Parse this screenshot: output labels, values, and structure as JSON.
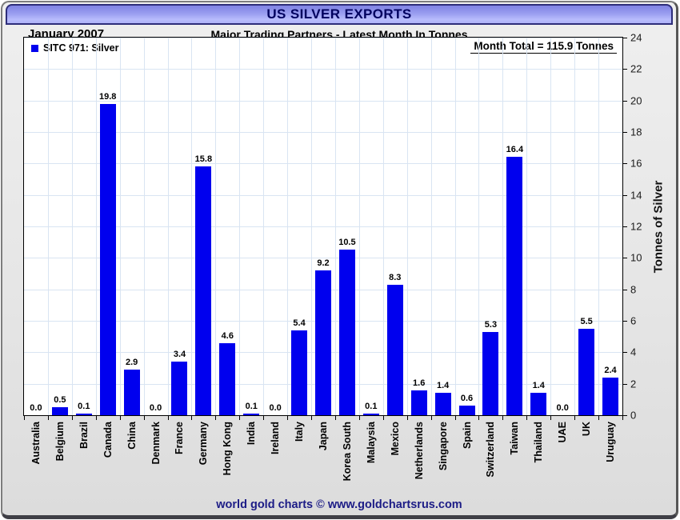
{
  "header": {
    "title": "US SILVER EXPORTS",
    "date_label": "January 2007",
    "subtitle": "Major Trading Partners - Latest Month In Tonnes"
  },
  "legend": {
    "series_label": "SITC 971: Silver"
  },
  "annotations": {
    "month_total": "Month Total = 115.9 Tonnes"
  },
  "footer": {
    "credit": "world gold charts © www.goldchartsrus.com"
  },
  "colors": {
    "bar": "#0000ee",
    "grid": "#d9e4f2",
    "title_text": "#00005f",
    "footer_text": "#1c1c86",
    "titlebar_top": "#7f82e2",
    "titlebar_bottom": "#b8bcfc"
  },
  "chart_data": {
    "type": "bar",
    "title": "US SILVER EXPORTS",
    "subtitle": "Major Trading Partners - Latest Month In Tonnes",
    "period": "January 2007",
    "month_total_tonnes": 115.9,
    "categories": [
      "Australia",
      "Belgium",
      "Brazil",
      "Canada",
      "China",
      "Denmark",
      "France",
      "Germany",
      "Hong Kong",
      "India",
      "Ireland",
      "Italy",
      "Japan",
      "Korea South",
      "Malaysia",
      "Mexico",
      "Netherlands",
      "Singapore",
      "Spain",
      "Switzerland",
      "Taiwan",
      "Thailand",
      "UAE",
      "UK",
      "Uruguay"
    ],
    "values": [
      0.0,
      0.5,
      0.1,
      19.8,
      2.9,
      0.0,
      3.4,
      15.8,
      4.6,
      0.1,
      0.0,
      5.4,
      9.2,
      10.5,
      0.1,
      8.3,
      1.6,
      1.4,
      0.6,
      5.3,
      16.4,
      1.4,
      0.0,
      5.5,
      2.4
    ],
    "xlabel": "",
    "ylabel": "Tonnes of Silver",
    "ylim": [
      0,
      24
    ],
    "ytick_step": 2,
    "bar_color": "#0000ee",
    "grid": true,
    "legend_entries": [
      "SITC 971: Silver"
    ],
    "legend_position": "top-left",
    "value_labels": true
  }
}
